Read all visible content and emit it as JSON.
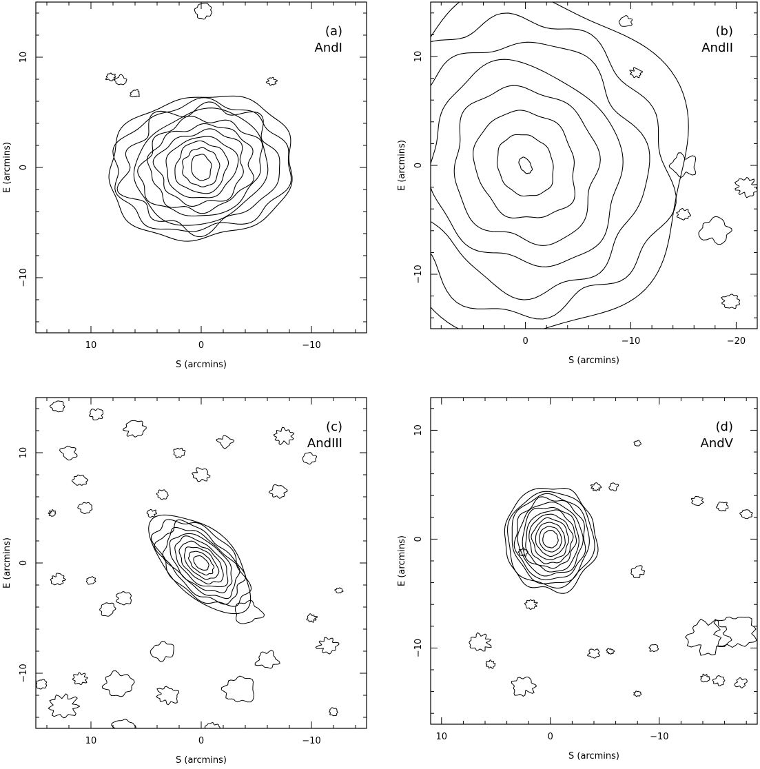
{
  "chart_data": [
    {
      "type": "contour",
      "panel_label": "(a)",
      "object_name": "AndI",
      "xlabel": "S (arcmins)",
      "ylabel": "E (arcmins)",
      "xlim": [
        15,
        -15
      ],
      "ylim": [
        -15,
        15
      ],
      "xticks": [
        10,
        0,
        -10
      ],
      "xtick_labels": [
        "10",
        "0",
        "−10"
      ],
      "yticks": [
        10,
        0,
        -10
      ],
      "ytick_labels": [
        "10",
        "0",
        "−10"
      ],
      "center": [
        0,
        0
      ],
      "levels": 11,
      "outer_radii": [
        8.5,
        6.5
      ],
      "inner_radii": [
        0.9,
        1.2
      ],
      "tilt_deg": -10,
      "noise": 0.18,
      "blobs": [
        [
          8.2,
          8.2,
          0.4
        ],
        [
          7.3,
          7.9,
          0.5
        ],
        [
          6.0,
          6.7,
          0.4
        ],
        [
          -6.4,
          7.8,
          0.4
        ],
        [
          -0.2,
          14.2,
          0.8
        ]
      ]
    },
    {
      "type": "contour",
      "panel_label": "(b)",
      "object_name": "AndII",
      "xlabel": "S (arcmins)",
      "ylabel": "E (arcmins)",
      "xlim": [
        9,
        -22
      ],
      "ylim": [
        -15,
        15
      ],
      "xticks": [
        0,
        -10,
        -20
      ],
      "xtick_labels": [
        "0",
        "−10",
        "−20"
      ],
      "yticks": [
        10,
        0,
        -10
      ],
      "ytick_labels": [
        "10",
        "0",
        "−10"
      ],
      "center": [
        0,
        0
      ],
      "levels": 8,
      "outer_radii": [
        15,
        16
      ],
      "inner_radii": [
        0.5,
        0.8
      ],
      "tilt_deg": -30,
      "noise": 0.16,
      "blobs": [
        [
          -15,
          0,
          1.2
        ],
        [
          -18,
          -6,
          1.4
        ],
        [
          -21,
          -2,
          1.0
        ],
        [
          -9.5,
          13.2,
          0.6
        ],
        [
          -19.5,
          -12.5,
          0.8
        ],
        [
          -15,
          -4.5,
          0.6
        ],
        [
          -10.5,
          8.5,
          0.5
        ]
      ]
    },
    {
      "type": "contour",
      "panel_label": "(c)",
      "object_name": "AndIII",
      "xlabel": "S (arcmins)",
      "ylabel": "E (arcmins)",
      "xlim": [
        15,
        -15
      ],
      "ylim": [
        -15,
        15
      ],
      "xticks": [
        10,
        0,
        -10
      ],
      "xtick_labels": [
        "10",
        "0",
        "−10"
      ],
      "yticks": [
        10,
        0,
        -10
      ],
      "ytick_labels": [
        "10",
        "0",
        "−10"
      ],
      "center": [
        0,
        0
      ],
      "levels": 10,
      "outer_radii": [
        5.5,
        3.0
      ],
      "inner_radii": [
        0.8,
        0.5
      ],
      "tilt_deg": 42,
      "noise": 0.14,
      "blobs": [
        [
          13,
          14.2,
          0.6
        ],
        [
          9.5,
          13.5,
          0.6
        ],
        [
          6,
          12.2,
          0.9
        ],
        [
          12,
          10,
          0.7
        ],
        [
          11,
          7.5,
          0.6
        ],
        [
          10.5,
          5,
          0.6
        ],
        [
          2,
          10,
          0.5
        ],
        [
          -2.2,
          11,
          0.6
        ],
        [
          -7.5,
          11.5,
          0.8
        ],
        [
          -9.8,
          9.5,
          0.6
        ],
        [
          0,
          8,
          0.7
        ],
        [
          -7,
          6.5,
          0.7
        ],
        [
          3.5,
          6.2,
          0.5
        ],
        [
          4.5,
          4.5,
          0.4
        ],
        [
          13.5,
          4.5,
          0.3
        ],
        [
          7,
          -3.2,
          0.7
        ],
        [
          13,
          -1.5,
          0.6
        ],
        [
          10,
          -1.6,
          0.4
        ],
        [
          8.5,
          -4.2,
          0.7
        ],
        [
          -4.2,
          -4.5,
          1.2
        ],
        [
          -10,
          -5,
          0.4
        ],
        [
          3.5,
          -8,
          1.0
        ],
        [
          -6,
          -8.8,
          0.9
        ],
        [
          -11.5,
          -7.5,
          0.8
        ],
        [
          -12.5,
          -2.5,
          0.3
        ],
        [
          7.5,
          -11,
          1.3
        ],
        [
          11,
          -10.5,
          0.6
        ],
        [
          3,
          -12,
          0.9
        ],
        [
          -3.5,
          -11.5,
          1.4
        ],
        [
          12.5,
          -13,
          1.2
        ],
        [
          -12,
          -13.5,
          0.4
        ],
        [
          7,
          -15,
          1.0
        ],
        [
          -1,
          -15,
          0.6
        ],
        [
          14.5,
          -11,
          0.5
        ]
      ]
    },
    {
      "type": "contour",
      "panel_label": "(d)",
      "object_name": "AndV",
      "xlabel": "S (arcmins)",
      "ylabel": "E (arcmins)",
      "xlim": [
        11,
        -19
      ],
      "ylim": [
        -17,
        13
      ],
      "xticks": [
        10,
        0,
        -10
      ],
      "xtick_labels": [
        "10",
        "0",
        "−10"
      ],
      "yticks": [
        10,
        0,
        -10
      ],
      "ytick_labels": [
        "10",
        "0",
        "−10"
      ],
      "center": [
        0,
        0
      ],
      "levels": 12,
      "outer_radii": [
        4.2,
        4.8
      ],
      "inner_radii": [
        0.7,
        0.8
      ],
      "tilt_deg": -5,
      "noise": 0.1,
      "blobs": [
        [
          -4.2,
          4.8,
          0.4
        ],
        [
          -5.8,
          4.8,
          0.4
        ],
        [
          -13.5,
          3.5,
          0.5
        ],
        [
          -15.8,
          3,
          0.5
        ],
        [
          -18,
          2.3,
          0.5
        ],
        [
          -8,
          8.8,
          0.3
        ],
        [
          2.5,
          -1.2,
          0.4
        ],
        [
          -8,
          -3,
          0.6
        ],
        [
          1.8,
          -6,
          0.5
        ],
        [
          -14.5,
          -9,
          1.8
        ],
        [
          -17,
          -8.5,
          1.8
        ],
        [
          -15.5,
          -13,
          0.5
        ],
        [
          -14.2,
          -12.8,
          0.4
        ],
        [
          -17.5,
          -13.2,
          0.5
        ],
        [
          -8,
          -14.2,
          0.3
        ],
        [
          -4,
          -10.5,
          0.5
        ],
        [
          -5.5,
          -10.3,
          0.3
        ],
        [
          -9.5,
          -10,
          0.4
        ],
        [
          5.5,
          -11.5,
          0.4
        ],
        [
          2.5,
          -13.5,
          1.0
        ],
        [
          6.5,
          -9.5,
          0.9
        ]
      ]
    }
  ]
}
